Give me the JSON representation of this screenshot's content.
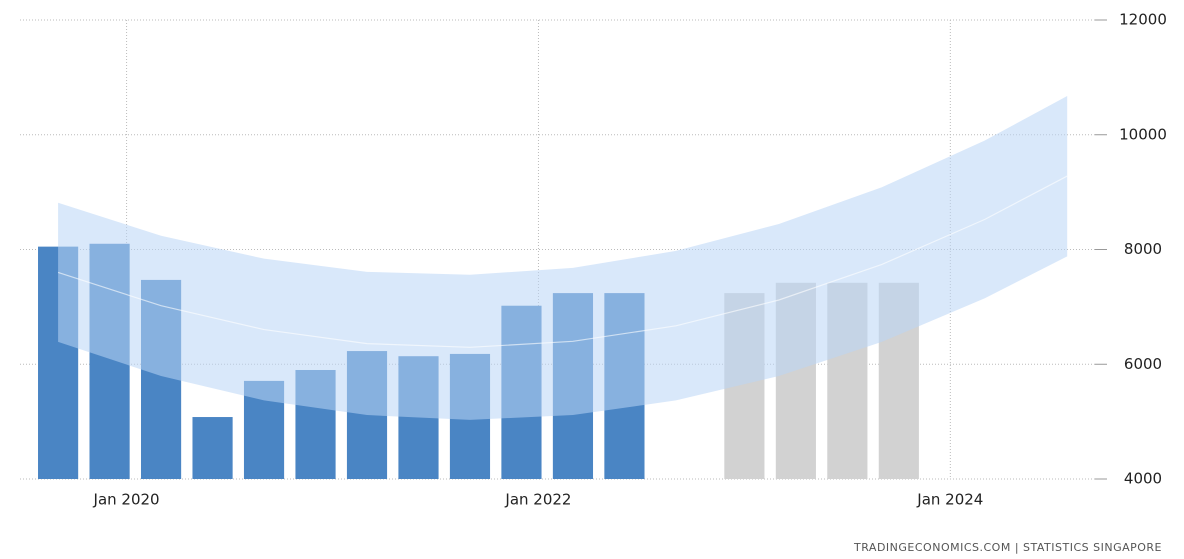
{
  "chart_data": {
    "type": "bar",
    "series": [
      {
        "name": null,
        "color": "#4a85c4",
        "x": [
          0,
          1,
          2,
          3,
          4,
          5,
          6,
          7,
          8,
          9,
          10,
          11
        ],
        "values": [
          8050,
          8100,
          7470,
          5080,
          5710,
          5900,
          6230,
          6140,
          6180,
          7020,
          7240,
          7240
        ]
      },
      {
        "name": null,
        "color": "#d2d2d2",
        "x": [
          13.33,
          14.33,
          15.33,
          16.33
        ],
        "values": [
          7240,
          7420,
          7420,
          7420
        ]
      }
    ],
    "band": {
      "color": "#b9d5f5",
      "x": [
        0,
        2,
        4,
        6,
        8,
        10,
        12,
        14,
        16,
        18,
        19.6
      ],
      "upper": [
        8815,
        8240,
        7840,
        7610,
        7560,
        7680,
        7975,
        8445,
        9085,
        9900,
        10675
      ],
      "middle": [
        7600,
        7020,
        6605,
        6360,
        6295,
        6400,
        6670,
        7120,
        7740,
        8525,
        9280
      ],
      "lower": [
        6390,
        5795,
        5370,
        5115,
        5030,
        5115,
        5370,
        5795,
        6390,
        7150,
        7880
      ]
    },
    "xlim": [
      -0.74,
      20.14
    ],
    "xticks": [
      {
        "value": 1.33,
        "label": "Jan 2020"
      },
      {
        "value": 9.33,
        "label": "Jan 2022"
      },
      {
        "value": 17.33,
        "label": "Jan 2024"
      }
    ],
    "ylim": [
      4000,
      12000
    ],
    "yticks": [
      4000,
      6000,
      8000,
      10000,
      12000
    ],
    "grid": true,
    "source": "TRADINGECONOMICS.COM  |  STATISTICS SINGAPORE"
  }
}
